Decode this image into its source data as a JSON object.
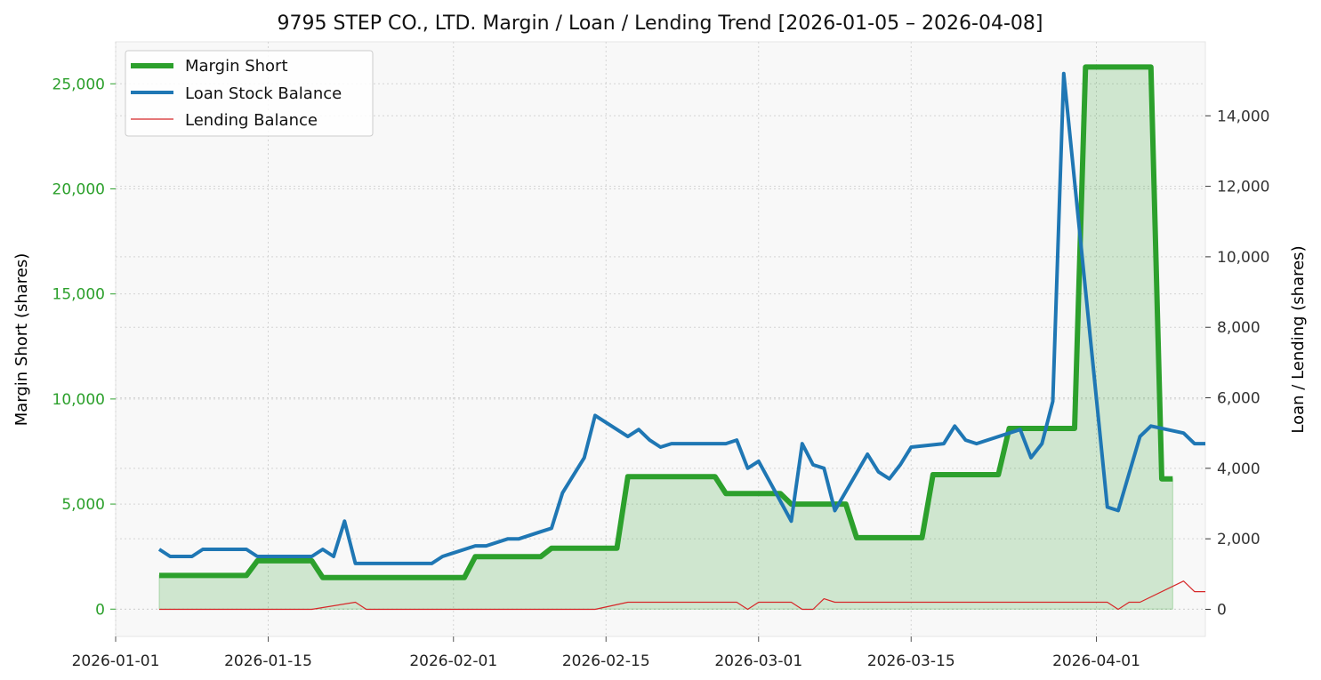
{
  "chart_data": {
    "type": "line",
    "title": "9795 STEP CO., LTD. Margin / Loan / Lending Trend [2026-01-05 – 2026-04-08]",
    "ylabel_left": "Margin Short (shares)",
    "ylabel_right": "Loan / Lending (shares)",
    "xlabel": "",
    "x_ticks": [
      "2026-01-01",
      "2026-01-15",
      "2026-02-01",
      "2026-02-15",
      "2026-03-01",
      "2026-03-15",
      "2026-04-01"
    ],
    "y_left_ticks": [
      0,
      5000,
      10000,
      15000,
      20000,
      25000
    ],
    "y_left_tick_labels": [
      "0",
      "5,000",
      "10,000",
      "15,000",
      "20,000",
      "25,000"
    ],
    "y_right_ticks": [
      0,
      2000,
      4000,
      6000,
      8000,
      10000,
      12000,
      14000
    ],
    "y_right_tick_labels": [
      "0",
      "2,000",
      "4,000",
      "6,000",
      "8,000",
      "10,000",
      "12,000",
      "14,000"
    ],
    "x_range": [
      "2026-01-01",
      "2026-04-11"
    ],
    "ylim_left": [
      -1300,
      27000
    ],
    "ylim_right": [
      -770,
      16100
    ],
    "grid": true,
    "legend_position": "top-left",
    "series": [
      {
        "name": "Margin Short",
        "axis": "left",
        "color": "#2ca02c",
        "fill": true,
        "points": [
          [
            "2026-01-05",
            1600
          ],
          [
            "2026-01-13",
            1600
          ],
          [
            "2026-01-14",
            2300
          ],
          [
            "2026-01-19",
            2300
          ],
          [
            "2026-01-20",
            1500
          ],
          [
            "2026-02-02",
            1500
          ],
          [
            "2026-02-03",
            2500
          ],
          [
            "2026-02-09",
            2500
          ],
          [
            "2026-02-10",
            2900
          ],
          [
            "2026-02-16",
            2900
          ],
          [
            "2026-02-17",
            6300
          ],
          [
            "2026-02-25",
            6300
          ],
          [
            "2026-02-26",
            5500
          ],
          [
            "2026-03-03",
            5500
          ],
          [
            "2026-03-04",
            5000
          ],
          [
            "2026-03-09",
            5000
          ],
          [
            "2026-03-10",
            3400
          ],
          [
            "2026-03-16",
            3400
          ],
          [
            "2026-03-17",
            6400
          ],
          [
            "2026-03-23",
            6400
          ],
          [
            "2026-03-24",
            8600
          ],
          [
            "2026-03-30",
            8600
          ],
          [
            "2026-03-31",
            25800
          ],
          [
            "2026-04-06",
            25800
          ],
          [
            "2026-04-07",
            6200
          ],
          [
            "2026-04-08",
            6200
          ]
        ]
      },
      {
        "name": "Loan Stock Balance",
        "axis": "right",
        "color": "#1f77b4",
        "fill": false,
        "points": [
          [
            "2026-01-05",
            1700
          ],
          [
            "2026-01-06",
            1500
          ],
          [
            "2026-01-08",
            1500
          ],
          [
            "2026-01-09",
            1700
          ],
          [
            "2026-01-13",
            1700
          ],
          [
            "2026-01-14",
            1500
          ],
          [
            "2026-01-19",
            1500
          ],
          [
            "2026-01-20",
            1700
          ],
          [
            "2026-01-21",
            1500
          ],
          [
            "2026-01-22",
            2500
          ],
          [
            "2026-01-23",
            1300
          ],
          [
            "2026-01-30",
            1300
          ],
          [
            "2026-01-31",
            1500
          ],
          [
            "2026-02-03",
            1800
          ],
          [
            "2026-02-04",
            1800
          ],
          [
            "2026-02-06",
            2000
          ],
          [
            "2026-02-07",
            2000
          ],
          [
            "2026-02-09",
            2200
          ],
          [
            "2026-02-10",
            2300
          ],
          [
            "2026-02-11",
            3300
          ],
          [
            "2026-02-13",
            4300
          ],
          [
            "2026-02-14",
            5500
          ],
          [
            "2026-02-17",
            4900
          ],
          [
            "2026-02-18",
            5100
          ],
          [
            "2026-02-19",
            4800
          ],
          [
            "2026-02-20",
            4600
          ],
          [
            "2026-02-21",
            4700
          ],
          [
            "2026-02-26",
            4700
          ],
          [
            "2026-02-27",
            4800
          ],
          [
            "2026-02-28",
            4000
          ],
          [
            "2026-03-01",
            4200
          ],
          [
            "2026-03-04",
            2500
          ],
          [
            "2026-03-05",
            4700
          ],
          [
            "2026-03-06",
            4100
          ],
          [
            "2026-03-07",
            4000
          ],
          [
            "2026-03-08",
            2800
          ],
          [
            "2026-03-11",
            4400
          ],
          [
            "2026-03-12",
            3900
          ],
          [
            "2026-03-13",
            3700
          ],
          [
            "2026-03-14",
            4100
          ],
          [
            "2026-03-15",
            4600
          ],
          [
            "2026-03-18",
            4700
          ],
          [
            "2026-03-19",
            5200
          ],
          [
            "2026-03-20",
            4800
          ],
          [
            "2026-03-21",
            4700
          ],
          [
            "2026-03-25",
            5100
          ],
          [
            "2026-03-26",
            4300
          ],
          [
            "2026-03-27",
            4700
          ],
          [
            "2026-03-28",
            5900
          ],
          [
            "2026-03-29",
            15200
          ],
          [
            "2026-04-02",
            2900
          ],
          [
            "2026-04-03",
            2800
          ],
          [
            "2026-04-05",
            4900
          ],
          [
            "2026-04-06",
            5200
          ],
          [
            "2026-04-09",
            5000
          ],
          [
            "2026-04-10",
            4700
          ],
          [
            "2026-04-11",
            4700
          ]
        ]
      },
      {
        "name": "Lending Balance",
        "axis": "right",
        "color": "#d62728",
        "fill": false,
        "points": [
          [
            "2026-01-05",
            0
          ],
          [
            "2026-01-19",
            0
          ],
          [
            "2026-01-23",
            200
          ],
          [
            "2026-01-24",
            0
          ],
          [
            "2026-02-14",
            0
          ],
          [
            "2026-02-17",
            200
          ],
          [
            "2026-02-27",
            200
          ],
          [
            "2026-02-28",
            0
          ],
          [
            "2026-03-01",
            200
          ],
          [
            "2026-03-04",
            200
          ],
          [
            "2026-03-05",
            0
          ],
          [
            "2026-03-06",
            0
          ],
          [
            "2026-03-07",
            300
          ],
          [
            "2026-03-08",
            200
          ],
          [
            "2026-04-02",
            200
          ],
          [
            "2026-04-03",
            0
          ],
          [
            "2026-04-04",
            200
          ],
          [
            "2026-04-05",
            200
          ],
          [
            "2026-04-09",
            800
          ],
          [
            "2026-04-10",
            500
          ],
          [
            "2026-04-11",
            500
          ]
        ]
      }
    ]
  },
  "colors": {
    "left_axis": "#2ca02c",
    "right_axis": "#333333",
    "plot_background": "#f8f8f8",
    "grid": "#d4d4d4",
    "fill": "#2ca02c"
  }
}
